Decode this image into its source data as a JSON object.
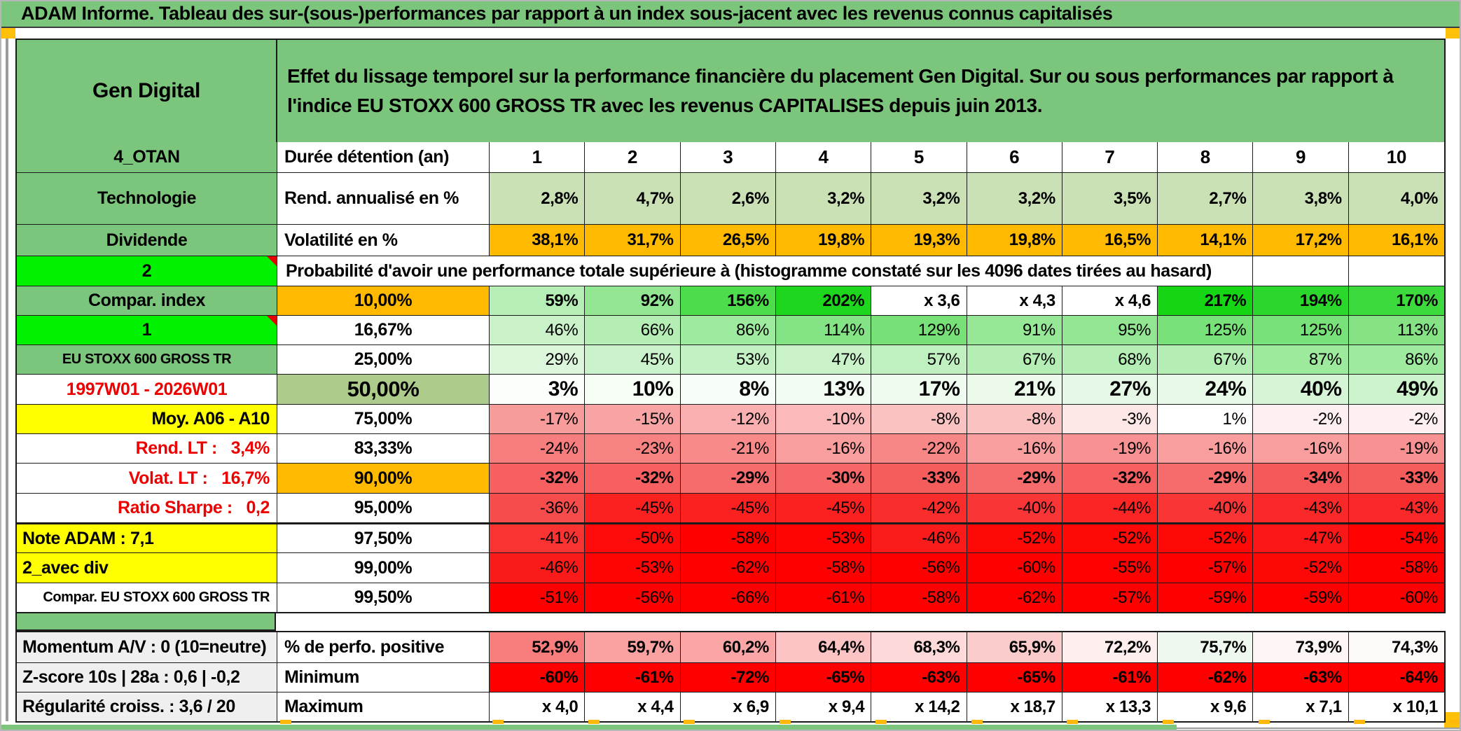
{
  "title": "ADAM Informe. Tableau des sur-(sous-)performances par rapport à un index sous-jacent avec les revenus connus capitalisés",
  "header": {
    "product": "Gen Digital",
    "description": "Effet du lissage temporel sur la performance financière du placement Gen Digital. Sur ou sous performances par rapport à l'indice EU STOXX 600 GROSS TR avec les revenus CAPITALISES depuis juin 2013."
  },
  "probability_note": "Probabilité d'avoir une performance totale supérieure à (histogramme constaté sur les 4096 dates tirées au hasard)",
  "colors": {
    "title_green": "#7cc57c",
    "bright_green": "#00f200",
    "orange": "#ffba00",
    "yellow": "#ffff00",
    "olive_green": "#adcc8b",
    "label_grey": "#efefef",
    "marker_orange": "#ffc107",
    "red_text": "#ee0000",
    "full_red": "#ff0000"
  },
  "columns": [
    "1",
    "2",
    "3",
    "4",
    "5",
    "6",
    "7",
    "8",
    "9",
    "10"
  ],
  "main_rows": [
    {
      "left": {
        "t": "4_OTAN",
        "bg": "#7cc57c",
        "align": "center"
      },
      "col2": {
        "t": "Durée détention (an)",
        "bg": "#ffffff",
        "align": "left"
      },
      "values": [
        "1",
        "2",
        "3",
        "4",
        "5",
        "6",
        "7",
        "8",
        "9",
        "10"
      ],
      "bg": [
        "#ffffff",
        "#ffffff",
        "#ffffff",
        "#ffffff",
        "#ffffff",
        "#ffffff",
        "#ffffff",
        "#ffffff",
        "#ffffff",
        "#ffffff"
      ],
      "bold": true,
      "center": true
    },
    {
      "left": {
        "t": "Technologie",
        "bg": "#7cc57c",
        "align": "center"
      },
      "col2": {
        "t": "Rend. annualisé en %",
        "bg": "#ffffff",
        "align": "left"
      },
      "values": [
        "2,8%",
        "4,7%",
        "2,6%",
        "3,2%",
        "3,2%",
        "3,2%",
        "3,5%",
        "2,7%",
        "3,8%",
        "4,0%"
      ],
      "bg": [
        "#c9e1b5",
        "#c9e1b5",
        "#c9e1b5",
        "#c9e1b5",
        "#c9e1b5",
        "#c9e1b5",
        "#c9e1b5",
        "#c9e1b5",
        "#c9e1b5",
        "#c9e1b5"
      ],
      "bold": true
    },
    {
      "left": {
        "t": "Dividende",
        "bg": "#7cc57c",
        "align": "center"
      },
      "col2": {
        "t": "Volatilité en %",
        "bg": "#ffffff",
        "align": "left"
      },
      "values": [
        "38,1%",
        "31,7%",
        "26,5%",
        "19,8%",
        "19,3%",
        "19,8%",
        "16,5%",
        "14,1%",
        "17,2%",
        "16,1%"
      ],
      "bg": [
        "#ffba00",
        "#ffba00",
        "#ffba00",
        "#ffba00",
        "#ffba00",
        "#ffba00",
        "#ffba00",
        "#ffba00",
        "#ffba00",
        "#ffba00"
      ],
      "bold": true
    },
    {
      "left": {
        "t": "2",
        "bg": "#00f200",
        "align": "center",
        "triangle": true
      },
      "merged": true
    },
    {
      "left": {
        "t": "Compar. index",
        "bg": "#7cc57c",
        "align": "center"
      },
      "col2": {
        "t": "10,00%",
        "bg": "#ffba00",
        "align": "center"
      },
      "values": [
        "59%",
        "92%",
        "156%",
        "202%",
        "x 3,6",
        "x 4,3",
        "x 4,6",
        "217%",
        "194%",
        "170%"
      ],
      "bg": [
        "#b5efb5",
        "#93e793",
        "#4cdc4c",
        "#1fd61f",
        "#ffffff",
        "#ffffff",
        "#ffffff",
        "#15d515",
        "#2bd72b",
        "#3dda3d"
      ],
      "bold": true
    },
    {
      "left": {
        "t": "1",
        "bg": "#00f200",
        "align": "center",
        "triangle": true
      },
      "col2": {
        "t": "16,67%",
        "bg": "#ffffff",
        "align": "center"
      },
      "values": [
        "46%",
        "66%",
        "86%",
        "114%",
        "129%",
        "91%",
        "95%",
        "125%",
        "125%",
        "113%"
      ],
      "bg": [
        "#c9f2c9",
        "#b4eeb4",
        "#9eea9e",
        "#84e384",
        "#77e077",
        "#96e796",
        "#92e692",
        "#79e179",
        "#79e179",
        "#85e385"
      ],
      "bold": false
    },
    {
      "left": {
        "t": "EU STOXX 600 GROSS TR",
        "bg": "#7cc57c",
        "align": "center",
        "small": true
      },
      "col2": {
        "t": "25,00%",
        "bg": "#ffffff",
        "align": "center"
      },
      "values": [
        "29%",
        "45%",
        "53%",
        "47%",
        "57%",
        "67%",
        "68%",
        "67%",
        "87%",
        "86%"
      ],
      "bg": [
        "#dbf6db",
        "#cbf3cb",
        "#c4f1c4",
        "#c9f2c9",
        "#c0f0c0",
        "#b5eeb5",
        "#b4eeb4",
        "#b5eeb5",
        "#9dea9d",
        "#9eea9e"
      ],
      "bold": false
    },
    {
      "left": {
        "t": "1997W01 - 2026W01",
        "bg": "#ffffff",
        "align": "center",
        "color": "#ee0000"
      },
      "col2": {
        "t": "50,00%",
        "bg": "#adcc8b",
        "align": "center",
        "big": true
      },
      "values": [
        "3%",
        "10%",
        "8%",
        "13%",
        "17%",
        "21%",
        "27%",
        "24%",
        "40%",
        "49%"
      ],
      "bg": [
        "#fcfefc",
        "#f5fdf5",
        "#f7fdf7",
        "#f2fcf2",
        "#effbef",
        "#ebfaeb",
        "#e5f8e5",
        "#e8f9e8",
        "#d6f5d6",
        "#cdf3cd"
      ],
      "bold": true,
      "big": true
    },
    {
      "left": {
        "t": "Moy. A06 - A10",
        "bg": "#ffff00",
        "align": "right"
      },
      "col2": {
        "t": "75,00%",
        "bg": "#ffffff",
        "align": "center"
      },
      "values": [
        "-17%",
        "-15%",
        "-12%",
        "-10%",
        "-8%",
        "-8%",
        "-3%",
        "1%",
        "-2%",
        "-2%"
      ],
      "bg": [
        "#f89b9b",
        "#f9a4a4",
        "#fab0b0",
        "#fbb9b9",
        "#fbc2c2",
        "#fbc2c2",
        "#fde7e7",
        "#ffffff",
        "#fef0f0",
        "#fef0f0"
      ],
      "bold": false
    },
    {
      "left": {
        "t": "Rend. LT :   3,4%",
        "bg": "#ffffff",
        "align": "right",
        "color": "#ee0000"
      },
      "col2": {
        "t": "83,33%",
        "bg": "#ffffff",
        "align": "center"
      },
      "values": [
        "-24%",
        "-23%",
        "-21%",
        "-16%",
        "-22%",
        "-16%",
        "-19%",
        "-16%",
        "-16%",
        "-19%"
      ],
      "bg": [
        "#f77e7e",
        "#f78282",
        "#f88a8a",
        "#f99e9e",
        "#f78686",
        "#f99e9e",
        "#f89292",
        "#f99e9e",
        "#f99e9e",
        "#f89292"
      ],
      "bold": false
    },
    {
      "left": {
        "t": "Volat. LT :   16,7%",
        "bg": "#ffffff",
        "align": "right",
        "color": "#ee0000"
      },
      "col2": {
        "t": "90,00%",
        "bg": "#ffba00",
        "align": "center"
      },
      "values": [
        "-32%",
        "-32%",
        "-29%",
        "-30%",
        "-33%",
        "-29%",
        "-32%",
        "-29%",
        "-34%",
        "-33%"
      ],
      "bg": [
        "#f66060",
        "#f66060",
        "#f66c6c",
        "#f66868",
        "#f55c5c",
        "#f66c6c",
        "#f66060",
        "#f66c6c",
        "#f55858",
        "#f55c5c"
      ],
      "bold": true
    },
    {
      "left": {
        "t": "Ratio Sharpe :   0,2",
        "bg": "#ffffff",
        "align": "right",
        "color": "#ee0000"
      },
      "col2": {
        "t": "95,00%",
        "bg": "#ffffff",
        "align": "center"
      },
      "values": [
        "-36%",
        "-45%",
        "-45%",
        "-45%",
        "-42%",
        "-40%",
        "-44%",
        "-40%",
        "-43%",
        "-43%"
      ],
      "bg": [
        "#f74c4c",
        "#fb2121",
        "#fb2121",
        "#fb2121",
        "#fa2d2d",
        "#f93535",
        "#fb2525",
        "#f93535",
        "#fa2929",
        "#fa2929"
      ],
      "bold": false
    },
    {
      "left": {
        "t": "Note ADAM : 7,1",
        "bg": "#ffff00",
        "align": "left"
      },
      "col2": {
        "t": "97,50%",
        "bg": "#ffffff",
        "align": "center"
      },
      "values": [
        "-41%",
        "-50%",
        "-58%",
        "-53%",
        "-46%",
        "-52%",
        "-52%",
        "-52%",
        "-47%",
        "-54%"
      ],
      "bg": [
        "#f93232",
        "#fe0b0b",
        "#ff0000",
        "#fe0404",
        "#fb1b1b",
        "#fe0808",
        "#fe0808",
        "#fe0808",
        "#fb1717",
        "#ff0202"
      ],
      "bold": false,
      "thickTop": true
    },
    {
      "left": {
        "t": "2_avec div",
        "bg": "#ffff00",
        "align": "left"
      },
      "col2": {
        "t": "99,00%",
        "bg": "#ffffff",
        "align": "center"
      },
      "values": [
        "-46%",
        "-53%",
        "-62%",
        "-58%",
        "-56%",
        "-60%",
        "-55%",
        "-57%",
        "-52%",
        "-58%"
      ],
      "bg": [
        "#fb1a1a",
        "#fe0404",
        "#ff0000",
        "#ff0000",
        "#ff0000",
        "#ff0000",
        "#fe0101",
        "#ff0000",
        "#fe0707",
        "#ff0000"
      ],
      "bold": false
    },
    {
      "left": {
        "t": "Compar. EU STOXX 600 GROSS TR",
        "bg": "#ffffff",
        "align": "right",
        "small": true
      },
      "col2": {
        "t": "99,50%",
        "bg": "#ffffff",
        "align": "center"
      },
      "values": [
        "-51%",
        "-56%",
        "-66%",
        "-61%",
        "-58%",
        "-62%",
        "-57%",
        "-59%",
        "-59%",
        "-60%"
      ],
      "bg": [
        "#ff0000",
        "#ff0000",
        "#ff0000",
        "#ff0000",
        "#ff0000",
        "#ff0000",
        "#ff0000",
        "#ff0000",
        "#ff0000",
        "#ff0000"
      ],
      "bold": false
    }
  ],
  "bottom_rows": [
    {
      "left": {
        "t": "Momentum A/V : 0 (10=neutre)",
        "bg": "#efefef",
        "align": "left"
      },
      "col2": {
        "t": "% de perfo. positive",
        "bg": "#ffffff",
        "align": "left"
      },
      "values": [
        "52,9%",
        "59,7%",
        "60,2%",
        "64,4%",
        "68,3%",
        "65,9%",
        "72,2%",
        "75,7%",
        "73,9%",
        "74,3%"
      ],
      "bg": [
        "#f87e7e",
        "#faa2a2",
        "#faa6a6",
        "#fcc4c4",
        "#fdd9d9",
        "#fccccc",
        "#feeeee",
        "#eef8ee",
        "#fef5f5",
        "#fefafa"
      ],
      "bold": true
    },
    {
      "left": {
        "t": "Z-score 10s | 28a : 0,6 | -0,2",
        "bg": "#efefef",
        "align": "left"
      },
      "col2": {
        "t": "Minimum",
        "bg": "#ffffff",
        "align": "left"
      },
      "values": [
        "-60%",
        "-61%",
        "-72%",
        "-65%",
        "-63%",
        "-65%",
        "-61%",
        "-62%",
        "-63%",
        "-64%"
      ],
      "bg": [
        "#ff0000",
        "#ff0000",
        "#ff0000",
        "#ff0000",
        "#ff0000",
        "#ff0000",
        "#ff0000",
        "#ff0000",
        "#ff0000",
        "#ff0000"
      ],
      "bold": true
    },
    {
      "left": {
        "t": "Régularité croiss. : 3,6 / 20",
        "bg": "#efefef",
        "align": "left"
      },
      "col2": {
        "t": "Maximum",
        "bg": "#ffffff",
        "align": "left"
      },
      "values": [
        "x 4,0",
        "x 4,4",
        "x 6,9",
        "x 9,4",
        "x 14,2",
        "x 18,7",
        "x 13,3",
        "x 9,6",
        "x 7,1",
        "x 10,1"
      ],
      "bg": [
        "#ffffff",
        "#ffffff",
        "#ffffff",
        "#ffffff",
        "#ffffff",
        "#ffffff",
        "#ffffff",
        "#ffffff",
        "#ffffff",
        "#ffffff"
      ],
      "bold": true
    }
  ]
}
